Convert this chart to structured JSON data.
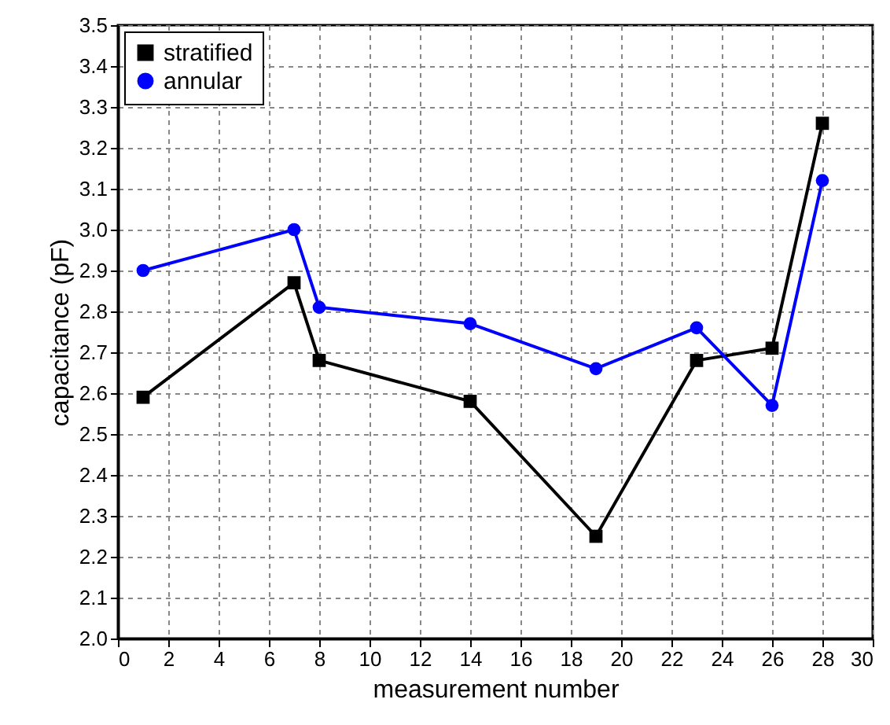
{
  "chart_data": {
    "type": "line",
    "xlabel": "measurement number",
    "ylabel": "capacitance (pF)",
    "x": [
      1,
      7,
      8,
      14,
      19,
      23,
      26,
      28
    ],
    "series": [
      {
        "name": "stratified",
        "color": "#000000",
        "marker": "square",
        "values": [
          2.59,
          2.87,
          2.68,
          2.58,
          2.25,
          2.68,
          2.71,
          3.26
        ]
      },
      {
        "name": "annular",
        "color": "#0000ff",
        "marker": "circle",
        "values": [
          2.9,
          3.0,
          2.81,
          2.77,
          2.66,
          2.76,
          2.57,
          3.12
        ]
      }
    ],
    "xlim": [
      0,
      30
    ],
    "xticks": [
      0,
      2,
      4,
      6,
      8,
      10,
      12,
      14,
      16,
      18,
      20,
      22,
      24,
      26,
      28,
      30
    ],
    "ylim": [
      2,
      3.5
    ],
    "yticks": [
      {
        "value": 2,
        "label": "2.0"
      },
      {
        "value": 2.1,
        "label": "2.1"
      },
      {
        "value": 2.2,
        "label": "2.2"
      },
      {
        "value": 2.3,
        "label": "2.3"
      },
      {
        "value": 2.4,
        "label": "2.4"
      },
      {
        "value": 2.5,
        "label": "2.5"
      },
      {
        "value": 2.6,
        "label": "2.6"
      },
      {
        "value": 2.7,
        "label": "2.7"
      },
      {
        "value": 2.8,
        "label": "2.8"
      },
      {
        "value": 2.9,
        "label": "2.9"
      },
      {
        "value": 3,
        "label": "3.0"
      },
      {
        "value": 3.1,
        "label": "3.1"
      },
      {
        "value": 3.2,
        "label": "3.2"
      },
      {
        "value": 3.3,
        "label": "3.3"
      },
      {
        "value": 3.4,
        "label": "3.4"
      },
      {
        "value": 3.5,
        "label": "3.5"
      }
    ],
    "grid": true,
    "legend": "top left",
    "line_style": "solid"
  }
}
